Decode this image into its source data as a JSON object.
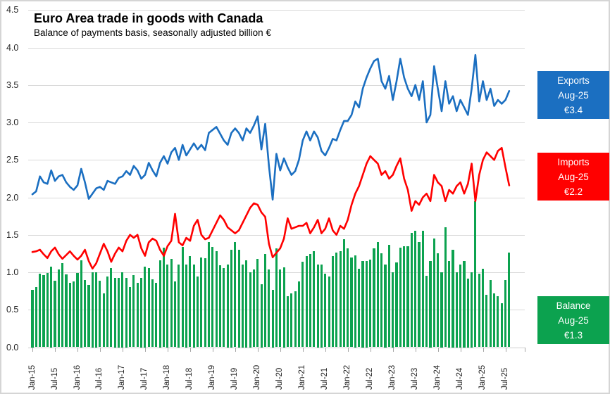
{
  "title": "Euro Area trade in goods with Canada",
  "subtitle": "Balance of payments basis, seasonally adjusted billion €",
  "colors": {
    "exports": "#1b6fc1",
    "imports": "#ff0000",
    "balance": "#0ca24f",
    "gridline": "#d9d9d9",
    "axis_text": "#262626"
  },
  "series_labels": {
    "exports": {
      "name": "Exports",
      "date": "Aug-25",
      "value": "€3.4"
    },
    "imports": {
      "name": "Imports",
      "date": "Aug-25",
      "value": "€2.2"
    },
    "balance": {
      "name": "Balance",
      "date": "Aug-25",
      "value": "€1.3"
    }
  },
  "chart_data": {
    "type": "combo",
    "x_start": "Jan-2015",
    "x_end": "Aug-2025",
    "months_per_point": 1,
    "x_tick_labels": [
      "Jan-15",
      "Jul-15",
      "Jan-16",
      "Jul-16",
      "Jan-17",
      "Jul-17",
      "Jan-18",
      "Jul-18",
      "Jan-19",
      "Jul-19",
      "Jan-20",
      "Jul-20",
      "Jan-21",
      "Jul-21",
      "Jan-22",
      "Jul-22",
      "Jan-23",
      "Jul-23",
      "Jan-24",
      "Jul-24",
      "Jan-25",
      "Jul-25"
    ],
    "x_tick_interval_months": 6,
    "y_ticks": [
      "0.0",
      "0.5",
      "1.0",
      "1.5",
      "2.0",
      "2.5",
      "3.0",
      "3.5",
      "4.0",
      "4.5"
    ],
    "ylim": [
      0,
      4.5
    ],
    "grid": "horizontal",
    "legend_position": "right-callout-boxes",
    "series": [
      {
        "name": "Exports",
        "type": "line",
        "color": "#1b6fc1",
        "values": [
          2.04,
          2.08,
          2.28,
          2.2,
          2.18,
          2.36,
          2.22,
          2.28,
          2.3,
          2.2,
          2.14,
          2.1,
          2.16,
          2.38,
          2.2,
          1.98,
          2.05,
          2.12,
          2.14,
          2.1,
          2.22,
          2.2,
          2.18,
          2.26,
          2.28,
          2.35,
          2.3,
          2.42,
          2.36,
          2.25,
          2.3,
          2.46,
          2.36,
          2.28,
          2.46,
          2.55,
          2.45,
          2.6,
          2.66,
          2.5,
          2.7,
          2.56,
          2.64,
          2.72,
          2.64,
          2.7,
          2.63,
          2.86,
          2.9,
          2.94,
          2.85,
          2.76,
          2.7,
          2.86,
          2.92,
          2.86,
          2.76,
          2.92,
          2.86,
          2.96,
          3.08,
          2.64,
          2.98,
          2.42,
          1.97,
          2.58,
          2.36,
          2.52,
          2.4,
          2.3,
          2.35,
          2.5,
          2.76,
          2.88,
          2.76,
          2.88,
          2.8,
          2.62,
          2.56,
          2.66,
          2.78,
          2.76,
          2.9,
          3.02,
          3.02,
          3.1,
          3.28,
          3.2,
          3.45,
          3.6,
          3.72,
          3.82,
          3.85,
          3.55,
          3.45,
          3.62,
          3.3,
          3.55,
          3.85,
          3.6,
          3.45,
          3.35,
          3.5,
          3.3,
          3.55,
          3.0,
          3.1,
          3.75,
          3.45,
          3.15,
          3.55,
          3.25,
          3.35,
          3.15,
          3.3,
          3.2,
          3.1,
          3.45,
          3.9,
          3.28,
          3.55,
          3.3,
          3.45,
          3.22,
          3.3,
          3.25,
          3.3,
          3.42
        ]
      },
      {
        "name": "Imports",
        "type": "line",
        "color": "#ff0000",
        "values": [
          1.27,
          1.28,
          1.3,
          1.24,
          1.19,
          1.28,
          1.33,
          1.24,
          1.18,
          1.23,
          1.28,
          1.22,
          1.17,
          1.22,
          1.3,
          1.15,
          1.05,
          1.12,
          1.25,
          1.38,
          1.28,
          1.14,
          1.25,
          1.33,
          1.28,
          1.42,
          1.5,
          1.46,
          1.5,
          1.32,
          1.22,
          1.4,
          1.45,
          1.42,
          1.3,
          1.22,
          1.35,
          1.42,
          1.78,
          1.4,
          1.36,
          1.46,
          1.42,
          1.62,
          1.7,
          1.5,
          1.44,
          1.46,
          1.56,
          1.66,
          1.76,
          1.7,
          1.6,
          1.56,
          1.52,
          1.56,
          1.66,
          1.76,
          1.86,
          1.92,
          1.9,
          1.8,
          1.74,
          1.38,
          1.2,
          1.26,
          1.32,
          1.45,
          1.72,
          1.58,
          1.6,
          1.62,
          1.62,
          1.66,
          1.52,
          1.6,
          1.7,
          1.52,
          1.58,
          1.72,
          1.56,
          1.5,
          1.62,
          1.58,
          1.7,
          1.9,
          2.05,
          2.15,
          2.3,
          2.45,
          2.55,
          2.5,
          2.45,
          2.3,
          2.35,
          2.25,
          2.3,
          2.42,
          2.52,
          2.25,
          2.1,
          1.82,
          1.95,
          1.9,
          2.0,
          2.05,
          1.95,
          2.3,
          2.2,
          2.15,
          1.95,
          2.1,
          2.05,
          2.15,
          2.2,
          2.05,
          2.18,
          2.45,
          1.95,
          2.3,
          2.5,
          2.6,
          2.55,
          2.5,
          2.62,
          2.66,
          2.4,
          2.16
        ]
      },
      {
        "name": "Balance",
        "type": "bar",
        "color": "#0ca24f",
        "values": [
          0.77,
          0.8,
          0.98,
          0.96,
          0.99,
          1.08,
          0.89,
          1.04,
          1.12,
          0.97,
          0.86,
          0.88,
          0.99,
          1.16,
          0.9,
          0.83,
          1.0,
          1.0,
          0.89,
          0.72,
          0.94,
          1.06,
          0.93,
          0.93,
          1.0,
          0.93,
          0.8,
          0.96,
          0.86,
          0.93,
          1.08,
          1.06,
          0.91,
          0.86,
          1.16,
          1.33,
          1.1,
          1.18,
          0.88,
          1.1,
          1.34,
          1.1,
          1.22,
          1.1,
          0.94,
          1.2,
          1.19,
          1.4,
          1.34,
          1.28,
          1.09,
          1.06,
          1.1,
          1.3,
          1.4,
          1.3,
          1.1,
          1.16,
          1.0,
          1.04,
          1.18,
          0.84,
          1.24,
          1.04,
          0.77,
          1.32,
          1.04,
          1.07,
          0.68,
          0.72,
          0.75,
          0.88,
          1.14,
          1.22,
          1.24,
          1.28,
          1.1,
          1.1,
          0.98,
          0.94,
          1.22,
          1.26,
          1.28,
          1.44,
          1.32,
          1.2,
          1.23,
          1.05,
          1.15,
          1.15,
          1.17,
          1.32,
          1.4,
          1.25,
          1.1,
          1.37,
          1.0,
          1.13,
          1.33,
          1.35,
          1.35,
          1.53,
          1.55,
          1.4,
          1.55,
          0.95,
          1.15,
          1.45,
          1.25,
          1.0,
          1.6,
          1.15,
          1.3,
          1.0,
          1.1,
          1.15,
          0.92,
          1.0,
          1.95,
          0.98,
          1.05,
          0.7,
          0.9,
          0.72,
          0.68,
          0.59,
          0.9,
          1.26
        ]
      }
    ]
  }
}
